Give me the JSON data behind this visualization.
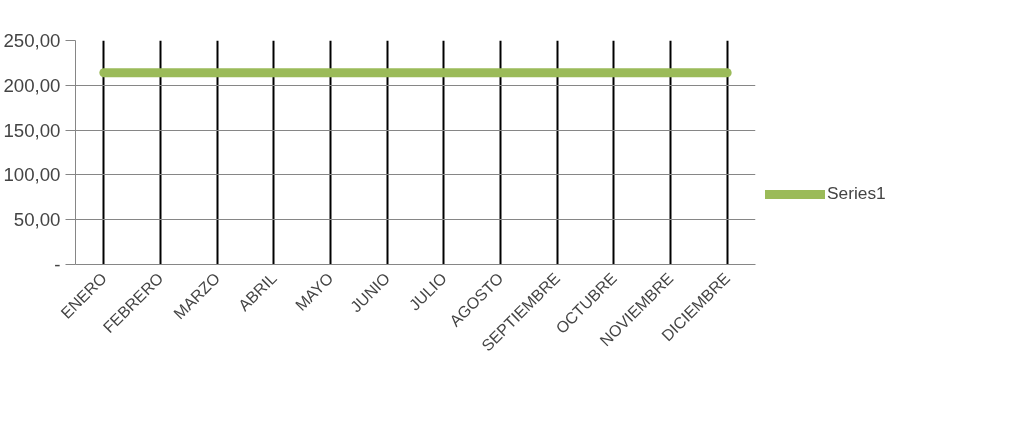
{
  "chart_data": {
    "type": "line",
    "categories": [
      "ENERO",
      "FEBRERO",
      "MARZO",
      "ABRIL",
      "MAYO",
      "JUNIO",
      "JULIO",
      "AGOSTO",
      "SEPTIEMBRE",
      "OCTUBRE",
      "NOVIEMBRE",
      "DICIEMBRE"
    ],
    "series": [
      {
        "name": "Series1",
        "color": "#9bbb59",
        "values": [
          214,
          214,
          214,
          214,
          214,
          214,
          214,
          214,
          214,
          214,
          214,
          214
        ]
      }
    ],
    "ylim": [
      0,
      250
    ],
    "yticks": [
      {
        "value": 0,
        "label": "-"
      },
      {
        "value": 50,
        "label": "50,00"
      },
      {
        "value": 100,
        "label": "100,00"
      },
      {
        "value": 150,
        "label": "150,00"
      },
      {
        "value": 200,
        "label": "200,00"
      },
      {
        "value": 250,
        "label": "250,00"
      }
    ],
    "grid": true,
    "legend": "right",
    "marker": "none",
    "line_style": "solid"
  }
}
